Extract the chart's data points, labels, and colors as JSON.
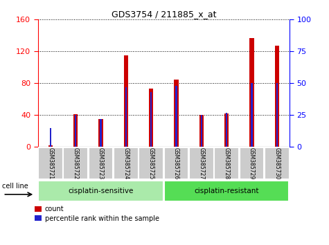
{
  "title": "GDS3754 / 211885_x_at",
  "samples": [
    "GSM385721",
    "GSM385722",
    "GSM385723",
    "GSM385724",
    "GSM385725",
    "GSM385726",
    "GSM385727",
    "GSM385728",
    "GSM385729",
    "GSM385730"
  ],
  "counts": [
    2,
    41,
    35,
    115,
    73,
    85,
    40,
    42,
    137,
    127
  ],
  "percentile_ranks": [
    15,
    25,
    22,
    47,
    43,
    48,
    25,
    27,
    50,
    50
  ],
  "group1_label": "cisplatin-sensitive",
  "group1_samples": 5,
  "group2_label": "cisplatin-resistant",
  "group2_samples": 5,
  "cell_line_label": "cell line",
  "legend_count": "count",
  "legend_percentile": "percentile rank within the sample",
  "ylim_left": [
    0,
    160
  ],
  "ylim_right": [
    0,
    100
  ],
  "yticks_left": [
    0,
    40,
    80,
    120,
    160
  ],
  "yticks_right": [
    0,
    25,
    50,
    75,
    100
  ],
  "bar_color": "#cc0000",
  "percentile_color": "#2222cc",
  "group1_bg": "#aaeaaa",
  "group2_bg": "#55dd55",
  "tick_bg": "#cccccc",
  "bar_width": 0.18
}
